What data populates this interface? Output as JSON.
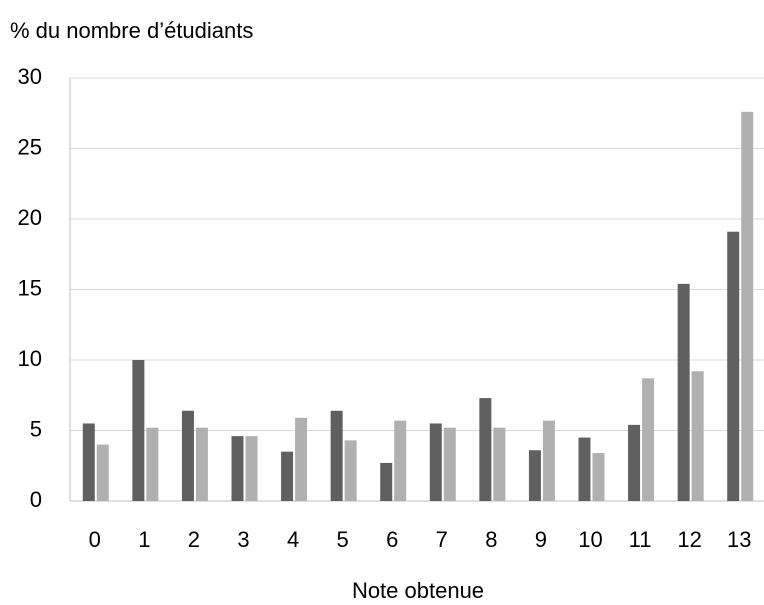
{
  "chart_data": {
    "type": "bar",
    "title": "% du nombre d’étudiants",
    "x_label": "Note obtenue",
    "categories": [
      "0",
      "1",
      "2",
      "3",
      "4",
      "5",
      "6",
      "7",
      "8",
      "9",
      "10",
      "11",
      "12",
      "13"
    ],
    "series": [
      {
        "color": "#606060",
        "values": [
          5.5,
          10,
          6.4,
          4.6,
          3.5,
          6.4,
          2.7,
          5.5,
          7.3,
          3.6,
          4.5,
          5.4,
          15.4,
          19.1
        ]
      },
      {
        "color": "#b0b0b0",
        "values": [
          4.0,
          5.2,
          5.2,
          4.6,
          5.9,
          4.3,
          5.7,
          5.2,
          5.2,
          5.7,
          3.4,
          8.7,
          9.2,
          27.6
        ]
      }
    ],
    "ylim": [
      0,
      30
    ],
    "yticks": [
      0,
      5,
      10,
      15,
      20,
      25,
      30
    ],
    "grid": true
  }
}
